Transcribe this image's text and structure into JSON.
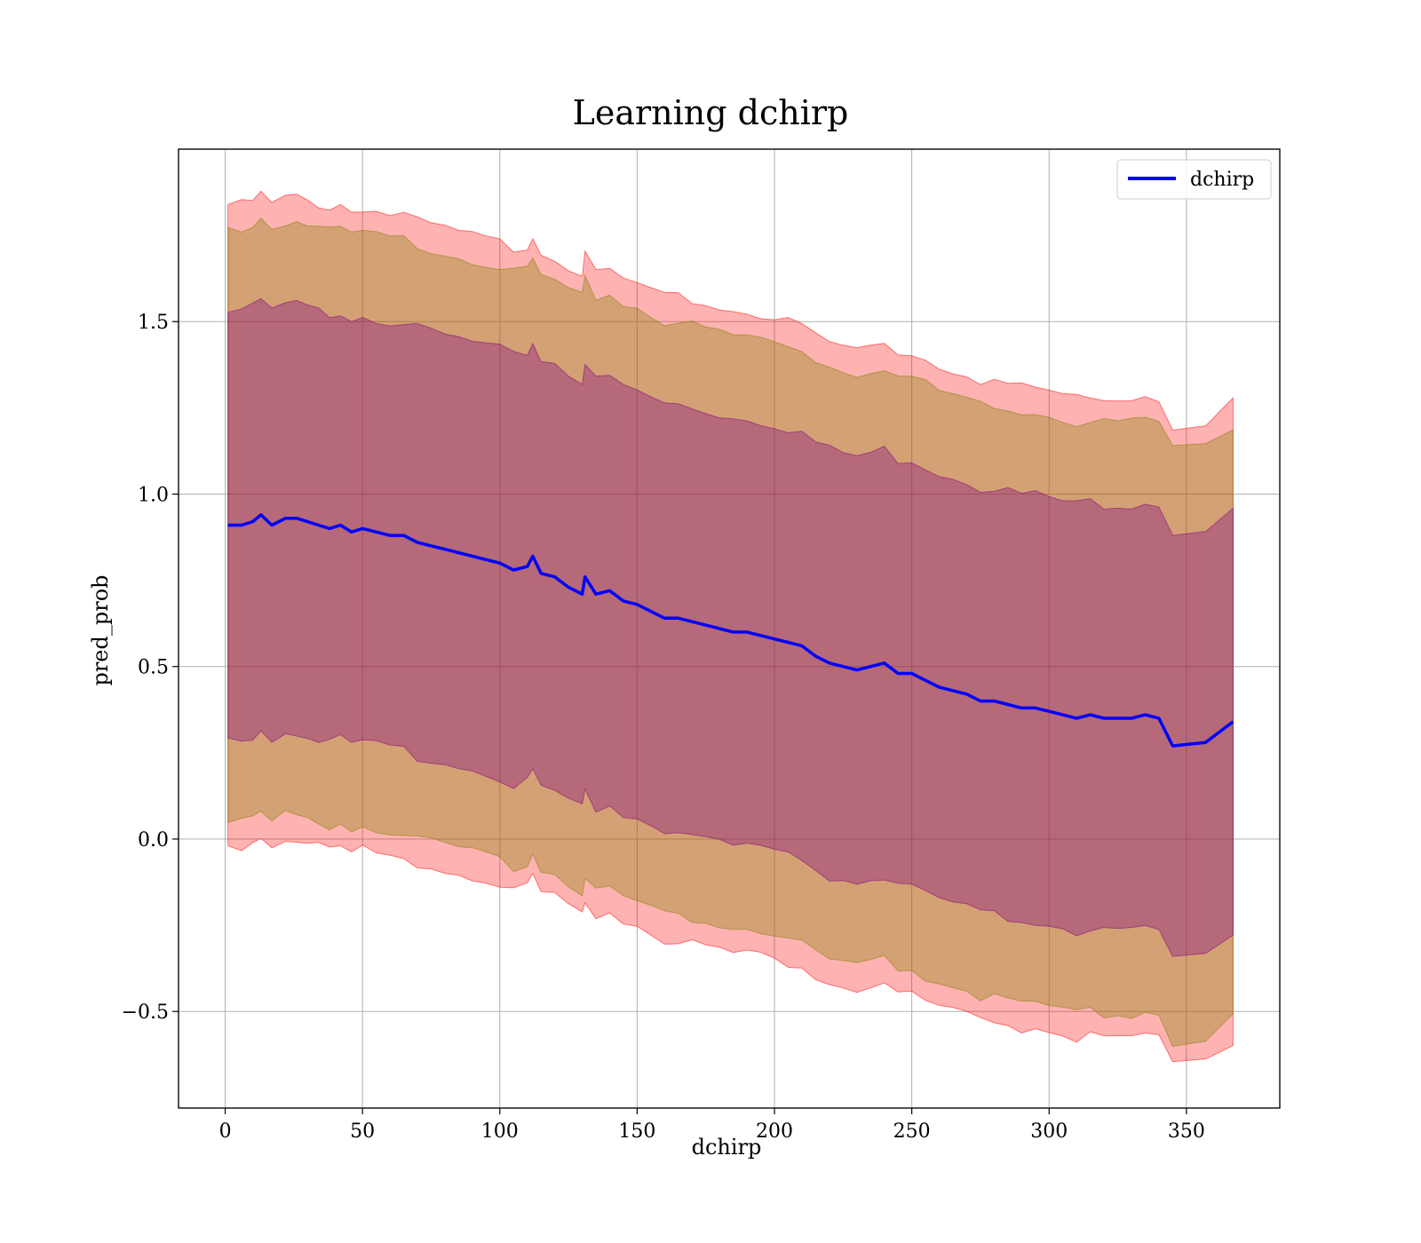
{
  "chart_data": {
    "type": "line",
    "title": "Learning dchirp",
    "xlabel": "dchirp",
    "ylabel": "pred_prob",
    "xlim": [
      -17,
      384
    ],
    "ylim": [
      -0.78,
      2.0
    ],
    "xticks": [
      0,
      50,
      100,
      150,
      200,
      250,
      300,
      350
    ],
    "xtick_labels": [
      "0",
      "50",
      "100",
      "150",
      "200",
      "250",
      "300",
      "350"
    ],
    "yticks": [
      -0.5,
      0.0,
      0.5,
      1.0,
      1.5
    ],
    "ytick_labels": [
      "−0.5",
      "0.0",
      "0.5",
      "1.0",
      "1.5"
    ],
    "grid": true,
    "legend_position": "top-right",
    "series": [
      {
        "name": "dchirp",
        "color": "#0000ff",
        "x": [
          1,
          6,
          10,
          13,
          17,
          22,
          26,
          30,
          34,
          38,
          42,
          46,
          50,
          55,
          60,
          65,
          70,
          75,
          80,
          85,
          90,
          95,
          100,
          105,
          110,
          112,
          115,
          120,
          125,
          130,
          131,
          135,
          140,
          145,
          150,
          155,
          160,
          165,
          170,
          175,
          180,
          185,
          190,
          195,
          200,
          205,
          210,
          215,
          220,
          225,
          230,
          235,
          240,
          245,
          250,
          255,
          260,
          265,
          270,
          275,
          280,
          285,
          290,
          295,
          300,
          305,
          310,
          315,
          320,
          325,
          330,
          335,
          340,
          345,
          357,
          367
        ],
        "y": [
          0.91,
          0.91,
          0.92,
          0.94,
          0.91,
          0.93,
          0.93,
          0.92,
          0.91,
          0.9,
          0.91,
          0.89,
          0.9,
          0.89,
          0.88,
          0.88,
          0.86,
          0.85,
          0.84,
          0.83,
          0.82,
          0.81,
          0.8,
          0.78,
          0.79,
          0.82,
          0.77,
          0.76,
          0.73,
          0.71,
          0.76,
          0.71,
          0.72,
          0.69,
          0.68,
          0.66,
          0.64,
          0.64,
          0.63,
          0.62,
          0.61,
          0.6,
          0.6,
          0.59,
          0.58,
          0.57,
          0.56,
          0.53,
          0.51,
          0.5,
          0.49,
          0.5,
          0.51,
          0.48,
          0.48,
          0.46,
          0.44,
          0.43,
          0.42,
          0.4,
          0.4,
          0.39,
          0.38,
          0.38,
          0.37,
          0.36,
          0.35,
          0.36,
          0.35,
          0.35,
          0.35,
          0.36,
          0.35,
          0.27,
          0.28,
          0.34
        ]
      }
    ],
    "bands": [
      {
        "label_sigma": 3,
        "fill": "#ff0000",
        "opacity": 0.3,
        "half_width_start": 0.93,
        "half_width_end": 0.93
      },
      {
        "label_sigma": 2,
        "fill": "#808000",
        "opacity": 0.35,
        "half_width_start": 0.86,
        "half_width_end": 0.86
      },
      {
        "label_sigma": 1,
        "fill": "#800080",
        "opacity": 0.35,
        "half_width_start": 0.62,
        "half_width_end": 0.62
      }
    ]
  }
}
